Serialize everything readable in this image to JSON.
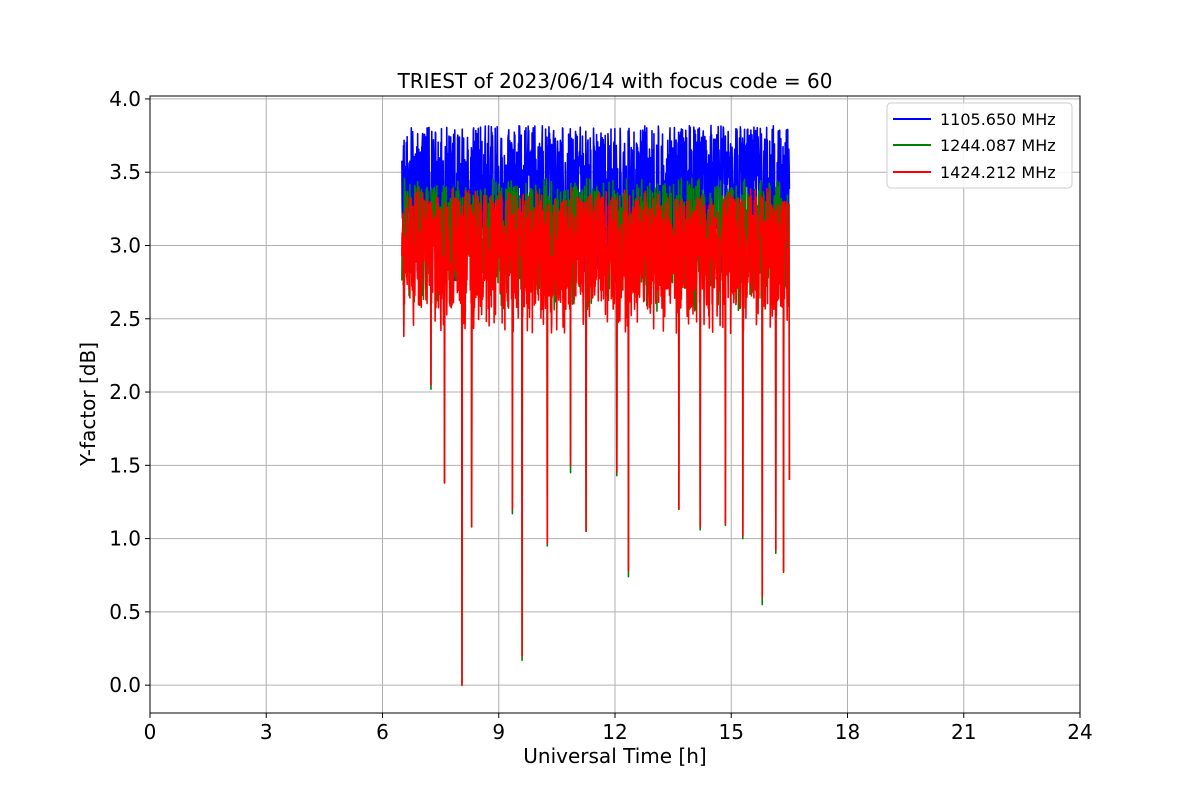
{
  "chart_data": {
    "type": "line",
    "title": "TRIEST of 2023/06/14 with focus code = 60",
    "xlabel": "Universal Time [h]",
    "ylabel": "Y-factor [dB]",
    "xlim": [
      0,
      24
    ],
    "ylim": [
      -0.19,
      4.02
    ],
    "x_ticks": [
      "0",
      "3",
      "6",
      "9",
      "12",
      "15",
      "18",
      "21",
      "24"
    ],
    "y_ticks": [
      "0.0",
      "0.5",
      "1.0",
      "1.5",
      "2.0",
      "2.5",
      "3.0",
      "3.5",
      "4.0"
    ],
    "x_tick_values": [
      0,
      3,
      6,
      9,
      12,
      15,
      18,
      21,
      24
    ],
    "y_tick_values": [
      0,
      0.5,
      1.0,
      1.5,
      2.0,
      2.5,
      3.0,
      3.5,
      4.0
    ],
    "grid": true,
    "legend_position": "top-right",
    "x_range_of_data": [
      6.5,
      16.5
    ],
    "series": [
      {
        "name": "1105.650 MHz",
        "color": "#0000ff",
        "typical_level": 3.4,
        "upper_envelope": 3.82,
        "lower_envelope": 2.75,
        "deep_dips": []
      },
      {
        "name": "1244.087 MHz",
        "color": "#008000",
        "typical_level": 3.05,
        "upper_envelope": 3.46,
        "lower_envelope": 2.55,
        "deep_dips": [
          {
            "x": 6.55,
            "y": 2.45
          },
          {
            "x": 7.25,
            "y": 2.02
          },
          {
            "x": 7.6,
            "y": 1.38
          },
          {
            "x": 8.05,
            "y": 0.0
          },
          {
            "x": 8.3,
            "y": 1.08
          },
          {
            "x": 9.35,
            "y": 1.17
          },
          {
            "x": 9.6,
            "y": 0.17
          },
          {
            "x": 10.25,
            "y": 0.95
          },
          {
            "x": 10.85,
            "y": 1.45
          },
          {
            "x": 11.25,
            "y": 1.05
          },
          {
            "x": 12.05,
            "y": 1.43
          },
          {
            "x": 12.35,
            "y": 0.74
          },
          {
            "x": 13.65,
            "y": 1.2
          },
          {
            "x": 14.2,
            "y": 1.06
          },
          {
            "x": 14.85,
            "y": 1.09
          },
          {
            "x": 15.3,
            "y": 1.0
          },
          {
            "x": 15.8,
            "y": 0.55
          },
          {
            "x": 16.15,
            "y": 0.9
          },
          {
            "x": 16.35,
            "y": 0.78
          },
          {
            "x": 16.5,
            "y": 1.4
          }
        ]
      },
      {
        "name": "1424.212 MHz",
        "color": "#ff0000",
        "typical_level": 2.95,
        "upper_envelope": 3.39,
        "lower_envelope": 2.4,
        "deep_dips": [
          {
            "x": 6.55,
            "y": 2.38
          },
          {
            "x": 7.25,
            "y": 2.05
          },
          {
            "x": 7.6,
            "y": 1.38
          },
          {
            "x": 8.05,
            "y": 0.0
          },
          {
            "x": 8.3,
            "y": 1.08
          },
          {
            "x": 9.35,
            "y": 1.2
          },
          {
            "x": 9.6,
            "y": 0.2
          },
          {
            "x": 10.25,
            "y": 0.97
          },
          {
            "x": 10.85,
            "y": 1.5
          },
          {
            "x": 11.25,
            "y": 1.05
          },
          {
            "x": 12.05,
            "y": 1.45
          },
          {
            "x": 12.35,
            "y": 0.78
          },
          {
            "x": 13.65,
            "y": 1.2
          },
          {
            "x": 14.2,
            "y": 1.08
          },
          {
            "x": 14.85,
            "y": 1.1
          },
          {
            "x": 15.3,
            "y": 1.02
          },
          {
            "x": 15.8,
            "y": 0.6
          },
          {
            "x": 16.15,
            "y": 0.92
          },
          {
            "x": 16.35,
            "y": 0.77
          },
          {
            "x": 16.5,
            "y": 1.4
          }
        ]
      }
    ]
  }
}
